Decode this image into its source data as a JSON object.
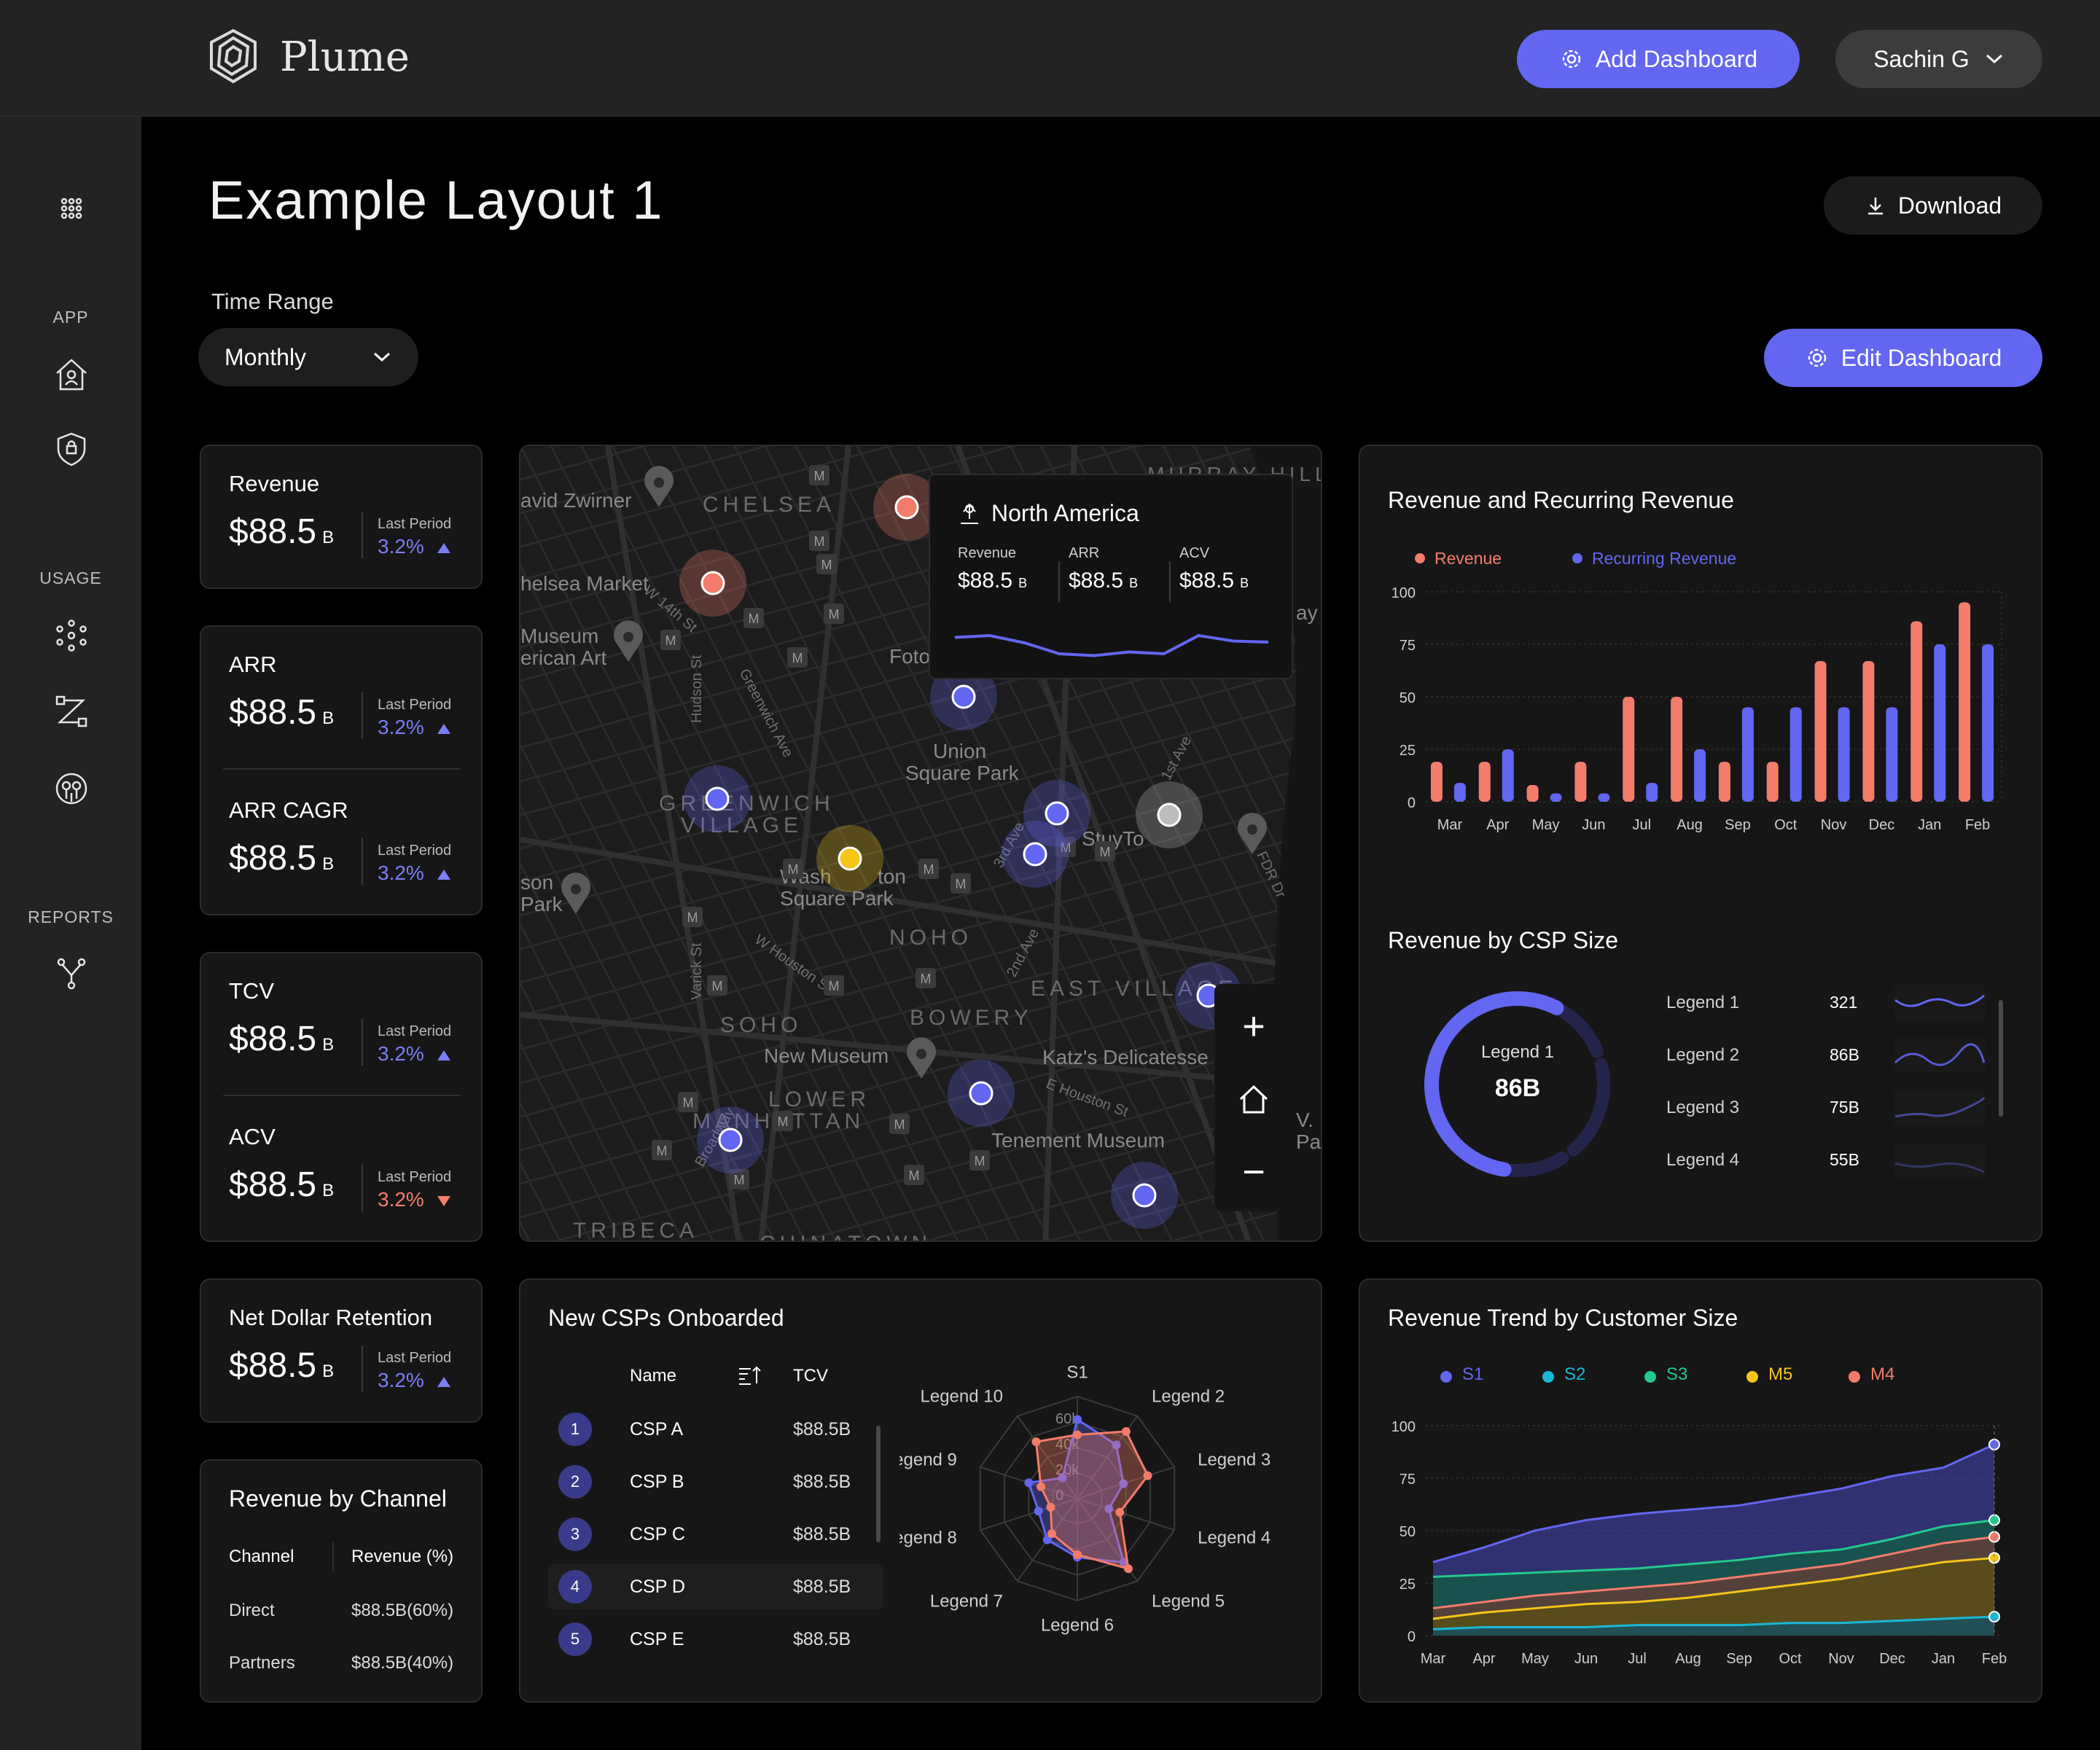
{
  "brand": {
    "name": "Plume"
  },
  "header": {
    "add_dashboard": "Add Dashboard",
    "user": "Sachin G"
  },
  "sidebar": {
    "sections": [
      "APP",
      "USAGE",
      "REPORTS"
    ]
  },
  "page": {
    "title": "Example Layout 1",
    "download": "Download",
    "edit_dashboard": "Edit Dashboard",
    "time_range_label": "Time Range",
    "time_range_value": "Monthly"
  },
  "kpis": {
    "revenue": {
      "title": "Revenue",
      "value": "$88.5",
      "unit": "B",
      "last": "Last Period",
      "pct": "3.2%",
      "dir": "up"
    },
    "arr": {
      "title": "ARR",
      "value": "$88.5",
      "unit": "B",
      "last": "Last Period",
      "pct": "3.2%",
      "dir": "up"
    },
    "arr_cagr": {
      "title": "ARR CAGR",
      "value": "$88.5",
      "unit": "B",
      "last": "Last Period",
      "pct": "3.2%",
      "dir": "up"
    },
    "tcv": {
      "title": "TCV",
      "value": "$88.5",
      "unit": "B",
      "last": "Last Period",
      "pct": "3.2%",
      "dir": "up"
    },
    "acv": {
      "title": "ACV",
      "value": "$88.5",
      "unit": "B",
      "last": "Last Period",
      "pct": "3.2%",
      "dir": "down"
    },
    "ndr": {
      "title": "Net Dollar Retention",
      "value": "$88.5",
      "unit": "B",
      "last": "Last Period",
      "pct": "3.2%",
      "dir": "up"
    }
  },
  "colors": {
    "accent": "#6366f1",
    "revenue": "#f47c6b",
    "recurring": "#6366f1",
    "up": "#7b7ef5",
    "down": "#f47c6b"
  },
  "map": {
    "labels": [
      "MURRAY HILL",
      "CHELSEA",
      "avid Zwirner",
      "helsea Market",
      "Museum",
      "erican Art",
      "Foto",
      "Union",
      "Square Park",
      "GREENWICH",
      "VILLAGE",
      "StuyTo",
      "Wash",
      "ton",
      "Square Park",
      "son",
      "Park",
      "NOHO",
      "EAST VILLAGE",
      "BOWERY",
      "SOHO",
      "New Museum",
      "Katz's Delicatesse",
      "LOWER",
      "MANHATTAN",
      "Tenement Museum",
      "TRIBECA",
      "CHINATOWN",
      "LOWER",
      "Hudson St",
      "Greenwich Ave",
      "W 14th St",
      "Varick St",
      "W Houston St",
      "E Houston St",
      "Broadway",
      "3rd Ave",
      "2nd Ave",
      "1st Ave",
      "FDR Dr",
      "V.",
      "Pa",
      "ay"
    ],
    "tooltip": {
      "region": "North America",
      "metrics": [
        {
          "label": "Revenue",
          "value": "$88.5",
          "unit": "B"
        },
        {
          "label": "ARR",
          "value": "$88.5",
          "unit": "B"
        },
        {
          "label": "ACV",
          "value": "$88.5",
          "unit": "B"
        }
      ],
      "sparkline": [
        0.55,
        0.6,
        0.4,
        0.1,
        0.05,
        0.15,
        0.1,
        0.6,
        0.45,
        0.42
      ]
    },
    "zoom": {
      "in": "+",
      "out": "−"
    }
  },
  "rev_chart": {
    "title": "Revenue and Recurring Revenue",
    "legend": [
      "Revenue",
      "Recurring Revenue"
    ]
  },
  "csp_size": {
    "title": "Revenue by CSP Size",
    "center_label": "Legend 1",
    "center_value": "86B",
    "gauge_fraction": 0.55,
    "items": [
      {
        "name": "Legend 1",
        "value": "321"
      },
      {
        "name": "Legend 2",
        "value": "86B"
      },
      {
        "name": "Legend 3",
        "value": "75B"
      },
      {
        "name": "Legend 4",
        "value": "55B"
      }
    ]
  },
  "channel": {
    "title": "Revenue by Channel",
    "headers": [
      "Channel",
      "Revenue (%)"
    ],
    "rows": [
      {
        "name": "Direct",
        "value": "$88.5B(60%)"
      },
      {
        "name": "Partners",
        "value": "$88.5B(40%)"
      }
    ]
  },
  "onboarded": {
    "title": "New CSPs Onboarded",
    "headers": [
      "Name",
      "TCV"
    ],
    "rows": [
      {
        "n": "1",
        "name": "CSP A",
        "tcv": "$88.5B"
      },
      {
        "n": "2",
        "name": "CSP B",
        "tcv": "$88.5B"
      },
      {
        "n": "3",
        "name": "CSP C",
        "tcv": "$88.5B"
      },
      {
        "n": "4",
        "name": "CSP D",
        "tcv": "$88.5B"
      },
      {
        "n": "5",
        "name": "CSP E",
        "tcv": "$88.5B"
      }
    ]
  },
  "trend": {
    "title": "Revenue Trend by Customer Size",
    "legend": [
      {
        "name": "S1",
        "color": "#6366f1"
      },
      {
        "name": "S2",
        "color": "#19b8d6"
      },
      {
        "name": "S3",
        "color": "#22c98f"
      },
      {
        "name": "M5",
        "color": "#f5c518"
      },
      {
        "name": "M4",
        "color": "#f47c6b"
      }
    ]
  },
  "chart_data": [
    {
      "type": "bar",
      "title": "Revenue and Recurring Revenue",
      "categories": [
        "Mar",
        "Apr",
        "May",
        "Jun",
        "Jul",
        "Aug",
        "Sep",
        "Oct",
        "Nov",
        "Dec",
        "Jan",
        "Feb"
      ],
      "series": [
        {
          "name": "Revenue",
          "values": [
            19,
            19,
            8,
            19,
            50,
            50,
            19,
            19,
            67,
            67,
            86,
            95
          ]
        },
        {
          "name": "Recurring Revenue",
          "values": [
            9,
            25,
            4,
            4,
            9,
            25,
            45,
            45,
            45,
            45,
            75,
            75
          ]
        }
      ],
      "yticks": [
        0,
        25,
        50,
        75,
        100
      ],
      "ylim": [
        0,
        100
      ],
      "legend": "top-left",
      "grid": true
    },
    {
      "type": "radar",
      "axes": [
        "S1",
        "Legend 2",
        "Legend 3",
        "Legend 4",
        "Legend 5",
        "Legend 6",
        "Legend 7",
        "Legend 8",
        "Legend 9",
        "Legend 10"
      ],
      "rings": [
        "60k",
        "40k",
        "20k",
        "0"
      ],
      "series": [
        {
          "values": [
            62,
            52,
            38,
            26,
            62,
            46,
            40,
            32,
            40,
            20
          ]
        },
        {
          "values": [
            50,
            65,
            58,
            35,
            68,
            44,
            34,
            22,
            30,
            55
          ]
        }
      ],
      "max": 80
    },
    {
      "type": "area",
      "title": "Revenue Trend by Customer Size",
      "categories": [
        "Mar",
        "Apr",
        "May",
        "Jun",
        "Jul",
        "Aug",
        "Sep",
        "Oct",
        "Nov",
        "Dec",
        "Jan",
        "Feb"
      ],
      "series": [
        {
          "name": "S1",
          "values": [
            35,
            42,
            50,
            55,
            58,
            60,
            62,
            66,
            70,
            76,
            80,
            91
          ]
        },
        {
          "name": "S3",
          "values": [
            28,
            29,
            30,
            31,
            32,
            34,
            36,
            39,
            41,
            46,
            52,
            55
          ]
        },
        {
          "name": "M4",
          "values": [
            13,
            16,
            19,
            21,
            23,
            25,
            28,
            31,
            34,
            39,
            44,
            47
          ]
        },
        {
          "name": "M5",
          "values": [
            8,
            11,
            13,
            15,
            16,
            18,
            21,
            24,
            27,
            31,
            35,
            37
          ]
        },
        {
          "name": "S2",
          "values": [
            3,
            4,
            4,
            4,
            5,
            5,
            5,
            6,
            6,
            7,
            8,
            9
          ]
        }
      ],
      "yticks": [
        0,
        25,
        50,
        75,
        100
      ],
      "ylim": [
        0,
        100
      ],
      "legend": "top-left",
      "grid": true
    }
  ]
}
